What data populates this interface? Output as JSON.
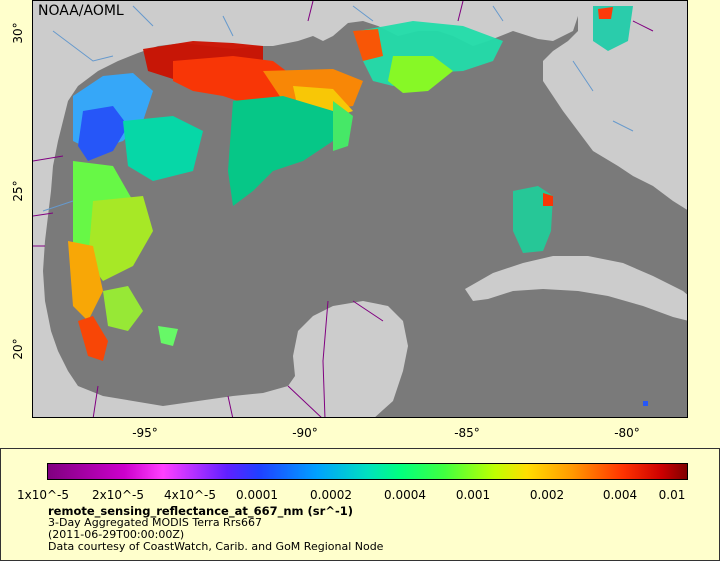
{
  "watermark": "NOAA/AOML",
  "latitude_labels": [
    "30°",
    "25°",
    "20°"
  ],
  "longitude_labels": [
    "-95°",
    "-90°",
    "-85°",
    "-80°"
  ],
  "legend": {
    "colorbar_ticks": [
      "1x10^-5",
      "2x10^-5",
      "4x10^-5",
      "0.0001",
      "0.0002",
      "0.0004",
      "0.001",
      "0.002",
      "0.004",
      "0.01"
    ],
    "variable": "remote_sensing_reflectance_at_667_nm (sr^-1)",
    "description": "3-Day Aggregated MODIS Terra Rrs667",
    "time": "(2011-06-29T00:00:00Z)",
    "credit": "Data courtesy of CoastWatch, Carib. and GoM Regional Node"
  },
  "colors": {
    "land": "#cccccc",
    "ocean_no_data": "#7a7a7a",
    "boundaries": "#800080",
    "rivers": "#6699cc"
  }
}
